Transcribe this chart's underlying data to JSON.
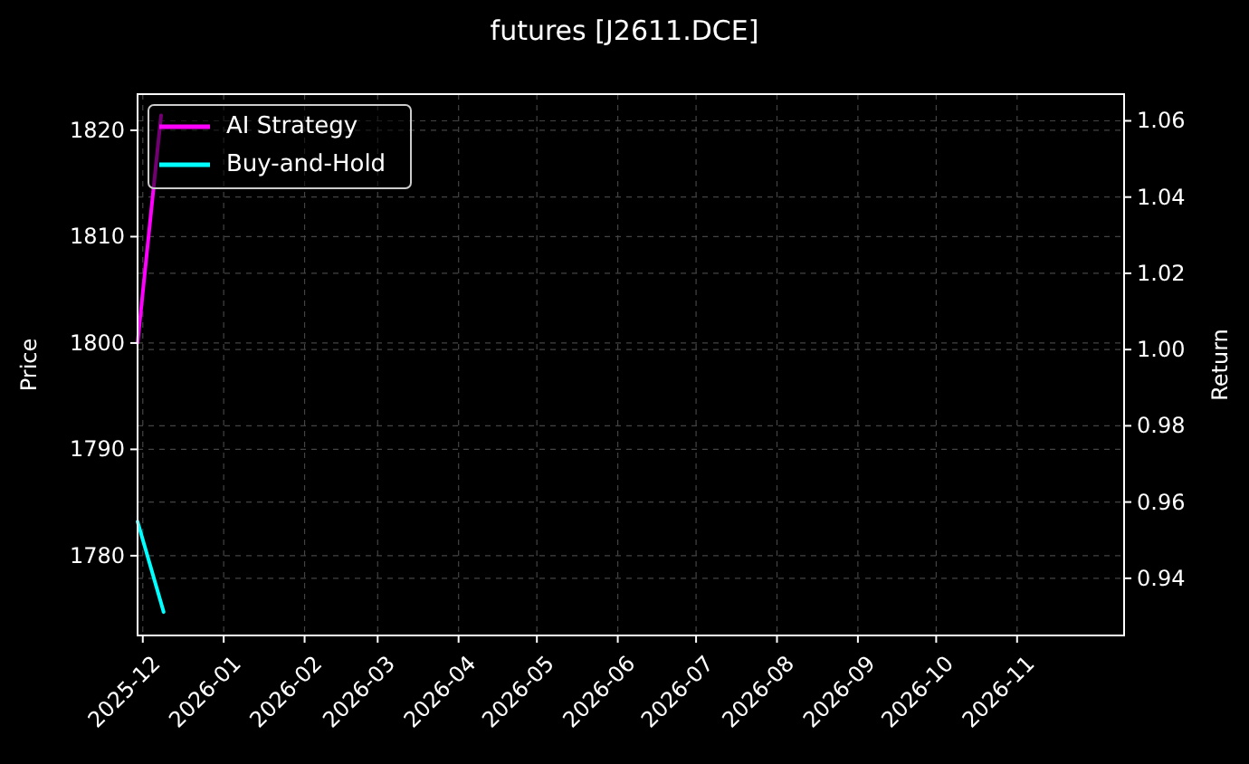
{
  "chart_data": {
    "type": "line",
    "title": "futures [J2611.DCE]",
    "ylabel": "Price",
    "y2label": "Return",
    "series": [
      {
        "name": "AI Strategy",
        "color": "#ff00ff",
        "x": [
          "2025-11-29",
          "2025-12-08"
        ],
        "values": [
          1800,
          1821.4
        ]
      },
      {
        "name": "Buy-and-Hold",
        "color": "#00ffff",
        "x": [
          "2025-11-29",
          "2025-12-09"
        ],
        "values": [
          1783.2,
          1774.7
        ]
      }
    ],
    "xlim": [
      "2025-11-29",
      "2026-12-12"
    ],
    "xticks": [
      {
        "value": "2025-12-01",
        "label": "2025-12"
      },
      {
        "value": "2026-01-01",
        "label": "2026-01"
      },
      {
        "value": "2026-02-01",
        "label": "2026-02"
      },
      {
        "value": "2026-03-01",
        "label": "2026-03"
      },
      {
        "value": "2026-04-01",
        "label": "2026-04"
      },
      {
        "value": "2026-05-01",
        "label": "2026-05"
      },
      {
        "value": "2026-06-01",
        "label": "2026-06"
      },
      {
        "value": "2026-07-01",
        "label": "2026-07"
      },
      {
        "value": "2026-08-01",
        "label": "2026-08"
      },
      {
        "value": "2026-09-01",
        "label": "2026-09"
      },
      {
        "value": "2026-10-01",
        "label": "2026-10"
      },
      {
        "value": "2026-11-01",
        "label": "2026-11"
      }
    ],
    "ylim": [
      1772.5,
      1823.4
    ],
    "yticks": [
      1780,
      1790,
      1800,
      1810,
      1820
    ],
    "y2lim": [
      0.925,
      1.067
    ],
    "y2ticks": [
      {
        "value": 0.94,
        "label": "0.94"
      },
      {
        "value": 0.96,
        "label": "0.96"
      },
      {
        "value": 0.98,
        "label": "0.98"
      },
      {
        "value": 1.0,
        "label": "1.00"
      },
      {
        "value": 1.02,
        "label": "1.02"
      },
      {
        "value": 1.04,
        "label": "1.04"
      },
      {
        "value": 1.06,
        "label": "1.06"
      }
    ],
    "grid": true,
    "legend": "top left",
    "line_style": "solid",
    "marker": "none"
  }
}
